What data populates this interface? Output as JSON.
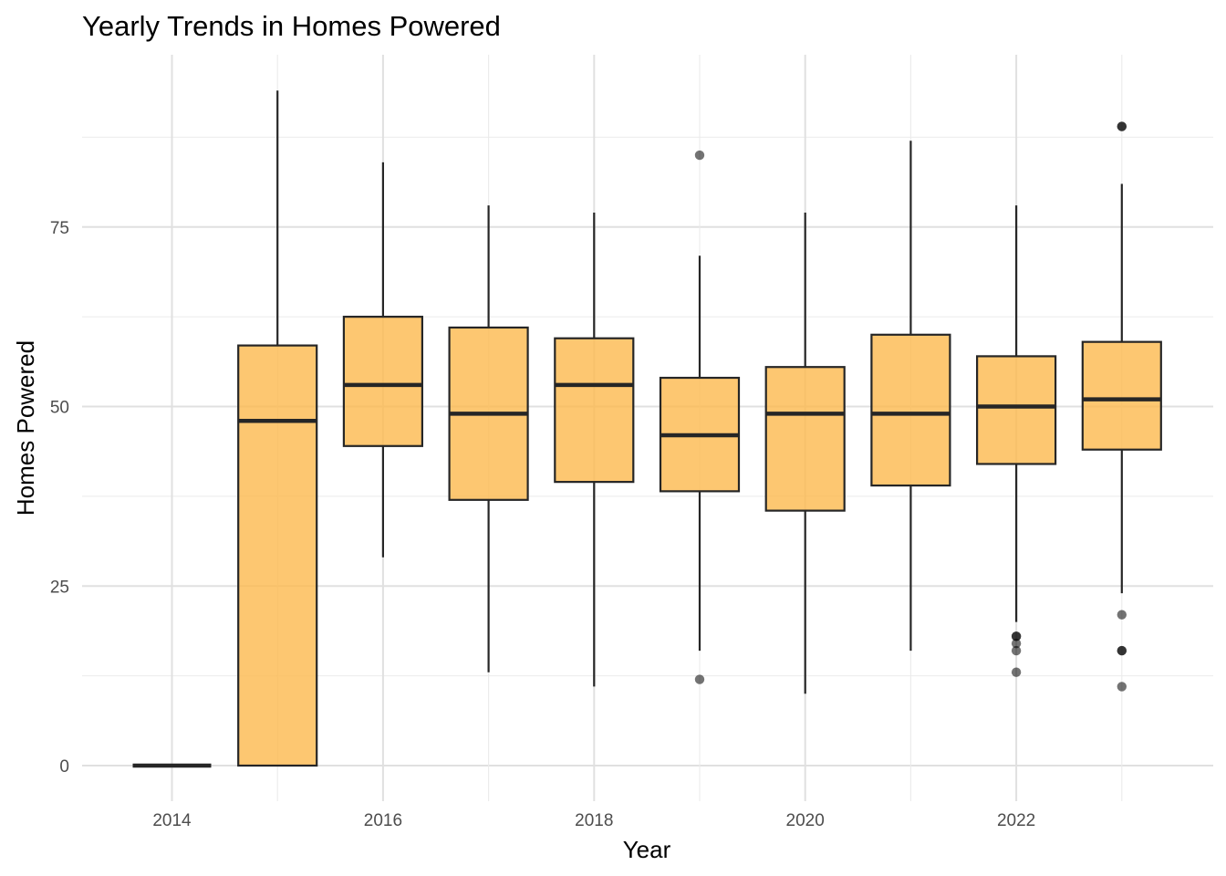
{
  "chart_data": {
    "type": "box",
    "title": "Yearly Trends in Homes Powered",
    "xlabel": "Year",
    "ylabel": "Homes Powered",
    "x_ticks": [
      "2014",
      "2016",
      "2018",
      "2020",
      "2022"
    ],
    "y_ticks": [
      "0",
      "25",
      "50",
      "75"
    ],
    "ylim": [
      -4,
      98
    ],
    "xlim": [
      2013.1,
      2023.9
    ],
    "grid": true,
    "fill_color": "#FDB94E",
    "fill_opacity": 0.8,
    "line_color": "#262626",
    "boxes": [
      {
        "year": 2014,
        "lower_whisker": 0,
        "q1": 0,
        "median": 0,
        "q3": 0,
        "upper_whisker": 0,
        "outliers": []
      },
      {
        "year": 2015,
        "lower_whisker": 0,
        "q1": 0,
        "median": 48,
        "q3": 58.5,
        "upper_whisker": 94,
        "outliers": []
      },
      {
        "year": 2016,
        "lower_whisker": 29,
        "q1": 44.5,
        "median": 53,
        "q3": 62.5,
        "upper_whisker": 84,
        "outliers": []
      },
      {
        "year": 2017,
        "lower_whisker": 13,
        "q1": 37,
        "median": 49,
        "q3": 61,
        "upper_whisker": 78,
        "outliers": []
      },
      {
        "year": 2018,
        "lower_whisker": 11,
        "q1": 39.5,
        "median": 53,
        "q3": 59.5,
        "upper_whisker": 77,
        "outliers": []
      },
      {
        "year": 2019,
        "lower_whisker": 16,
        "q1": 38.2,
        "median": 46,
        "q3": 54,
        "upper_whisker": 71,
        "outliers": [
          12,
          85
        ]
      },
      {
        "year": 2020,
        "lower_whisker": 10,
        "q1": 35.5,
        "median": 49,
        "q3": 55.5,
        "upper_whisker": 77,
        "outliers": []
      },
      {
        "year": 2021,
        "lower_whisker": 16,
        "q1": 39,
        "median": 49,
        "q3": 60,
        "upper_whisker": 87,
        "outliers": []
      },
      {
        "year": 2022,
        "lower_whisker": 20,
        "q1": 42,
        "median": 50,
        "q3": 57,
        "upper_whisker": 78,
        "outliers": [
          13,
          16,
          17,
          18,
          18
        ]
      },
      {
        "year": 2023,
        "lower_whisker": 24,
        "q1": 44,
        "median": 51,
        "q3": 59,
        "upper_whisker": 81,
        "outliers": [
          11,
          16,
          16,
          21,
          89,
          89
        ]
      }
    ]
  }
}
